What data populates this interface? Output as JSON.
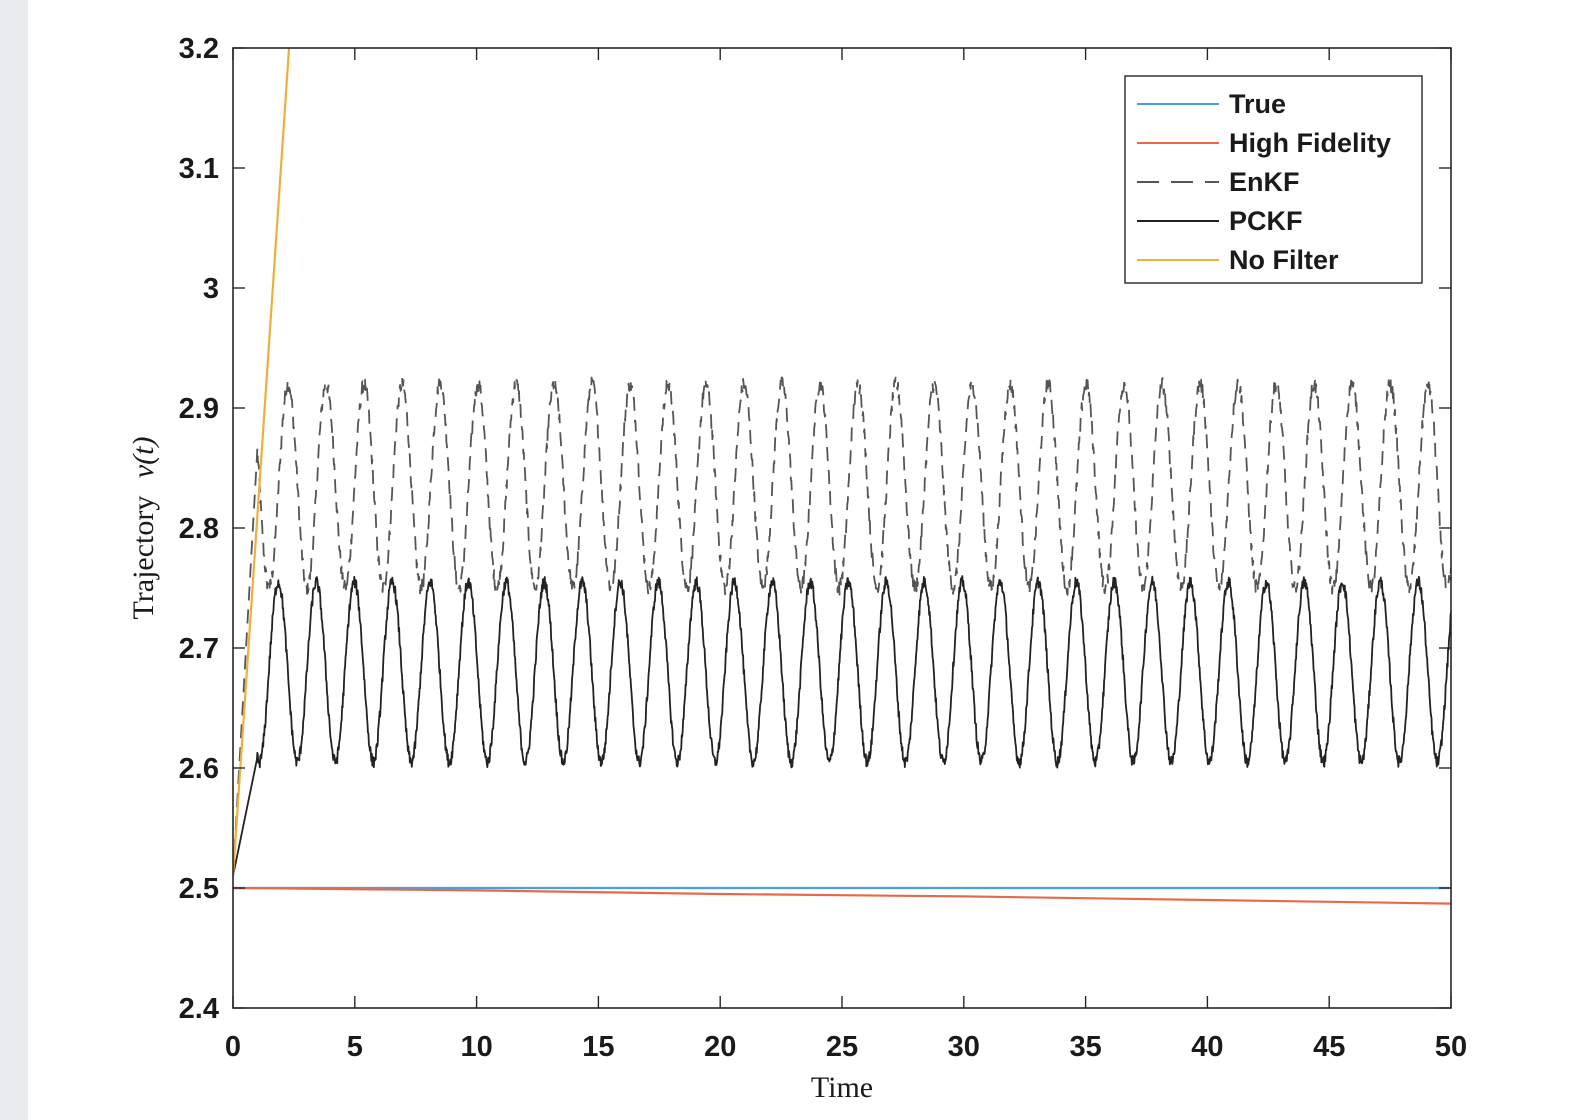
{
  "chart_data": {
    "type": "line",
    "title": "",
    "xlabel": "Time",
    "ylabel": "Trajectory v(t)",
    "ylabel_var": "v(t)",
    "ylabel_prefix": "Trajectory",
    "xlim": [
      0,
      50
    ],
    "ylim": [
      2.4,
      3.2
    ],
    "xticks": [
      0,
      5,
      10,
      15,
      20,
      25,
      30,
      35,
      40,
      45,
      50
    ],
    "yticks": [
      2.4,
      2.5,
      2.6,
      2.7,
      2.8,
      2.9,
      3,
      3.1,
      3.2
    ],
    "ytick_labels": [
      "2.4",
      "2.5",
      "2.6",
      "2.7",
      "2.8",
      "2.9",
      "3",
      "3.1",
      "3.2"
    ],
    "grid": false,
    "legend_position": "top-right",
    "series": [
      {
        "name": "True",
        "color": "#4a9fe0",
        "style": "solid",
        "x": [
          0,
          50
        ],
        "y": [
          2.5,
          2.5
        ]
      },
      {
        "name": "High Fidelity",
        "color": "#e8694a",
        "style": "solid",
        "x": [
          0,
          10,
          20,
          30,
          40,
          50
        ],
        "y": [
          2.5,
          2.498,
          2.495,
          2.493,
          2.49,
          2.487
        ]
      },
      {
        "name": "EnKF",
        "color": "#555555",
        "style": "dashed",
        "model": {
          "start": 2.51,
          "rise_end": 1.0,
          "mean": 2.835,
          "amplitude": 0.085,
          "period": 1.56,
          "phase_t": 4.6,
          "noise": 0.006
        }
      },
      {
        "name": "PCKF",
        "color": "#222222",
        "style": "solid",
        "model": {
          "start": 2.51,
          "rise_end": 1.0,
          "mean": 2.68,
          "amplitude": 0.075,
          "period": 1.56,
          "phase_t": 4.2,
          "noise": 0.005
        }
      },
      {
        "name": "No Filter",
        "color": "#edb03f",
        "style": "solid",
        "x": [
          0,
          2.3
        ],
        "y": [
          2.51,
          3.2
        ]
      }
    ]
  }
}
